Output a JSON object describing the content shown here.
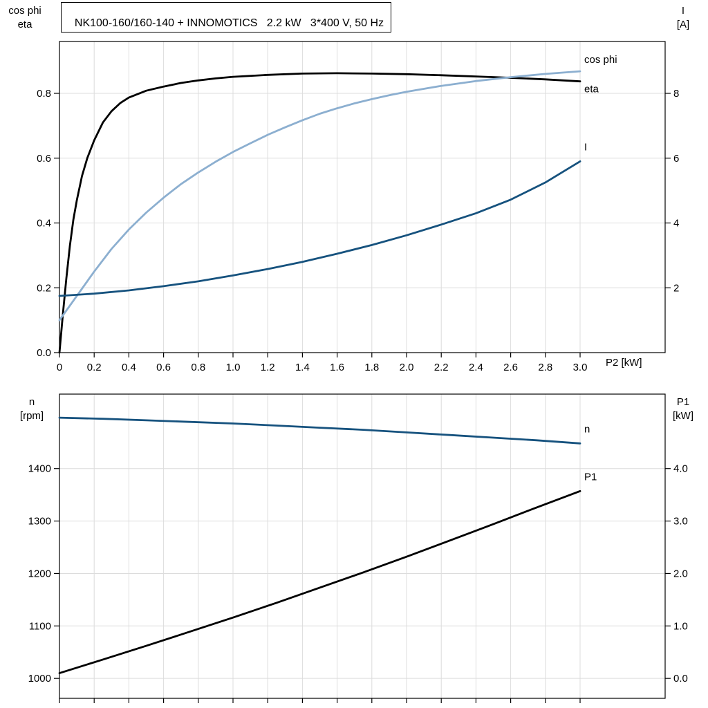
{
  "header": {
    "title": "NK100-160/160-140 + INNOMOTICS   2.2 kW   3*400 V, 50 Hz"
  },
  "colors": {
    "grid": "#dcdcdc",
    "axis": "#000000",
    "eta": "#000000",
    "cos_phi": "#8cafd0",
    "current": "#16527e",
    "speed": "#16527e",
    "p1": "#000000"
  },
  "chart_data": [
    {
      "type": "line",
      "x_axis": {
        "label": "P2 [kW]",
        "min": 0,
        "max": 3.49,
        "ticks": [
          {
            "value": 0,
            "label": "0"
          },
          {
            "value": 0.2,
            "label": "0.2"
          },
          {
            "value": 0.4,
            "label": "0.4"
          },
          {
            "value": 0.6,
            "label": "0.6"
          },
          {
            "value": 0.8,
            "label": "0.8"
          },
          {
            "value": 1.0,
            "label": "1.0"
          },
          {
            "value": 1.2,
            "label": "1.2"
          },
          {
            "value": 1.4,
            "label": "1.4"
          },
          {
            "value": 1.6,
            "label": "1.6"
          },
          {
            "value": 1.8,
            "label": "1.8"
          },
          {
            "value": 2.0,
            "label": "2.0"
          },
          {
            "value": 2.2,
            "label": "2.2"
          },
          {
            "value": 2.4,
            "label": "2.4"
          },
          {
            "value": 2.6,
            "label": "2.6"
          },
          {
            "value": 2.8,
            "label": "2.8"
          },
          {
            "value": 3.0,
            "label": "3.0"
          }
        ]
      },
      "left_axis": {
        "title_lines": [
          "cos phi",
          "eta"
        ],
        "min": 0,
        "max": 0.96,
        "ticks": [
          {
            "value": 0,
            "label": "0.0"
          },
          {
            "value": 0.2,
            "label": "0.2"
          },
          {
            "value": 0.4,
            "label": "0.4"
          },
          {
            "value": 0.6,
            "label": "0.6"
          },
          {
            "value": 0.8,
            "label": "0.8"
          }
        ]
      },
      "right_axis": {
        "title_lines": [
          "I",
          "[A]"
        ],
        "min": 0,
        "max": 9.6,
        "ticks": [
          {
            "value": 2,
            "label": "2"
          },
          {
            "value": 4,
            "label": "4"
          },
          {
            "value": 6,
            "label": "6"
          },
          {
            "value": 8,
            "label": "8"
          }
        ]
      },
      "series": [
        {
          "name": "eta",
          "label": "eta",
          "axis": "left",
          "color": "#000000",
          "label_offset": [
            6,
            16
          ],
          "points": [
            [
              0,
              0
            ],
            [
              0.02,
              0.12
            ],
            [
              0.04,
              0.23
            ],
            [
              0.06,
              0.33
            ],
            [
              0.08,
              0.41
            ],
            [
              0.1,
              0.47
            ],
            [
              0.13,
              0.545
            ],
            [
              0.16,
              0.6
            ],
            [
              0.2,
              0.655
            ],
            [
              0.25,
              0.71
            ],
            [
              0.3,
              0.745
            ],
            [
              0.35,
              0.77
            ],
            [
              0.4,
              0.787
            ],
            [
              0.5,
              0.808
            ],
            [
              0.6,
              0.821
            ],
            [
              0.7,
              0.832
            ],
            [
              0.8,
              0.84
            ],
            [
              0.9,
              0.846
            ],
            [
              1.0,
              0.851
            ],
            [
              1.2,
              0.857
            ],
            [
              1.4,
              0.861
            ],
            [
              1.6,
              0.862
            ],
            [
              1.8,
              0.861
            ],
            [
              2.0,
              0.859
            ],
            [
              2.2,
              0.856
            ],
            [
              2.4,
              0.852
            ],
            [
              2.6,
              0.848
            ],
            [
              2.8,
              0.843
            ],
            [
              3.0,
              0.837
            ]
          ]
        },
        {
          "name": "cos-phi",
          "label": "cos phi",
          "axis": "left",
          "color": "#8cafd0",
          "label_offset": [
            6,
            -12
          ],
          "points": [
            [
              0,
              0.1
            ],
            [
              0.1,
              0.175
            ],
            [
              0.2,
              0.25
            ],
            [
              0.3,
              0.32
            ],
            [
              0.4,
              0.38
            ],
            [
              0.5,
              0.432
            ],
            [
              0.6,
              0.478
            ],
            [
              0.7,
              0.52
            ],
            [
              0.8,
              0.556
            ],
            [
              0.9,
              0.589
            ],
            [
              1.0,
              0.619
            ],
            [
              1.1,
              0.646
            ],
            [
              1.2,
              0.672
            ],
            [
              1.3,
              0.695
            ],
            [
              1.4,
              0.717
            ],
            [
              1.5,
              0.737
            ],
            [
              1.6,
              0.754
            ],
            [
              1.7,
              0.769
            ],
            [
              1.8,
              0.782
            ],
            [
              1.9,
              0.794
            ],
            [
              2.0,
              0.805
            ],
            [
              2.2,
              0.823
            ],
            [
              2.4,
              0.838
            ],
            [
              2.6,
              0.85
            ],
            [
              2.8,
              0.86
            ],
            [
              3.0,
              0.868
            ]
          ]
        },
        {
          "name": "current",
          "label": "I",
          "axis": "right",
          "color": "#16527e",
          "label_offset": [
            6,
            -16
          ],
          "points": [
            [
              0,
              1.75
            ],
            [
              0.2,
              1.82
            ],
            [
              0.4,
              1.92
            ],
            [
              0.6,
              2.05
            ],
            [
              0.8,
              2.2
            ],
            [
              1.0,
              2.38
            ],
            [
              1.2,
              2.58
            ],
            [
              1.4,
              2.8
            ],
            [
              1.6,
              3.05
            ],
            [
              1.8,
              3.32
            ],
            [
              2.0,
              3.62
            ],
            [
              2.2,
              3.95
            ],
            [
              2.4,
              4.3
            ],
            [
              2.6,
              4.72
            ],
            [
              2.8,
              5.25
            ],
            [
              3.0,
              5.9
            ]
          ]
        }
      ]
    },
    {
      "type": "line",
      "x_axis": {
        "label": "",
        "min": 0,
        "max": 3.49,
        "ticks": [
          {
            "value": 0,
            "label": ""
          },
          {
            "value": 0.2,
            "label": ""
          },
          {
            "value": 0.4,
            "label": ""
          },
          {
            "value": 0.6,
            "label": ""
          },
          {
            "value": 0.8,
            "label": ""
          },
          {
            "value": 1.0,
            "label": ""
          },
          {
            "value": 1.2,
            "label": ""
          },
          {
            "value": 1.4,
            "label": ""
          },
          {
            "value": 1.6,
            "label": ""
          },
          {
            "value": 1.8,
            "label": ""
          },
          {
            "value": 2.0,
            "label": ""
          },
          {
            "value": 2.2,
            "label": ""
          },
          {
            "value": 2.4,
            "label": ""
          },
          {
            "value": 2.6,
            "label": ""
          },
          {
            "value": 2.8,
            "label": ""
          },
          {
            "value": 3.0,
            "label": ""
          }
        ]
      },
      "left_axis": {
        "title_lines": [
          "n",
          "[rpm]"
        ],
        "min": 962,
        "max": 1542,
        "ticks": [
          {
            "value": 1000,
            "label": "1000"
          },
          {
            "value": 1100,
            "label": "1100"
          },
          {
            "value": 1200,
            "label": "1200"
          },
          {
            "value": 1300,
            "label": "1300"
          },
          {
            "value": 1400,
            "label": "1400"
          }
        ]
      },
      "right_axis": {
        "title_lines": [
          "P1",
          "[kW]"
        ],
        "min": -0.38,
        "max": 5.42,
        "ticks": [
          {
            "value": 0,
            "label": "0.0"
          },
          {
            "value": 1,
            "label": "1.0"
          },
          {
            "value": 2,
            "label": "2.0"
          },
          {
            "value": 3,
            "label": "3.0"
          },
          {
            "value": 4,
            "label": "4.0"
          }
        ]
      },
      "series": [
        {
          "name": "speed",
          "label": "n",
          "axis": "left",
          "color": "#16527e",
          "label_offset": [
            6,
            -16
          ],
          "points": [
            [
              0,
              1497
            ],
            [
              0.25,
              1495
            ],
            [
              0.5,
              1492
            ],
            [
              0.75,
              1489
            ],
            [
              1.0,
              1486
            ],
            [
              1.25,
              1482
            ],
            [
              1.5,
              1478
            ],
            [
              1.75,
              1474
            ],
            [
              2.0,
              1469
            ],
            [
              2.25,
              1464
            ],
            [
              2.5,
              1459
            ],
            [
              2.75,
              1454
            ],
            [
              3.0,
              1448
            ]
          ]
        },
        {
          "name": "p1",
          "label": "P1",
          "axis": "right",
          "color": "#000000",
          "label_offset": [
            6,
            -16
          ],
          "points": [
            [
              0,
              0.1
            ],
            [
              0.25,
              0.36
            ],
            [
              0.5,
              0.62
            ],
            [
              0.75,
              0.89
            ],
            [
              1.0,
              1.16
            ],
            [
              1.25,
              1.44
            ],
            [
              1.5,
              1.73
            ],
            [
              1.75,
              2.02
            ],
            [
              2.0,
              2.32
            ],
            [
              2.25,
              2.63
            ],
            [
              2.5,
              2.94
            ],
            [
              2.75,
              3.26
            ],
            [
              3.0,
              3.57
            ]
          ]
        }
      ]
    }
  ]
}
